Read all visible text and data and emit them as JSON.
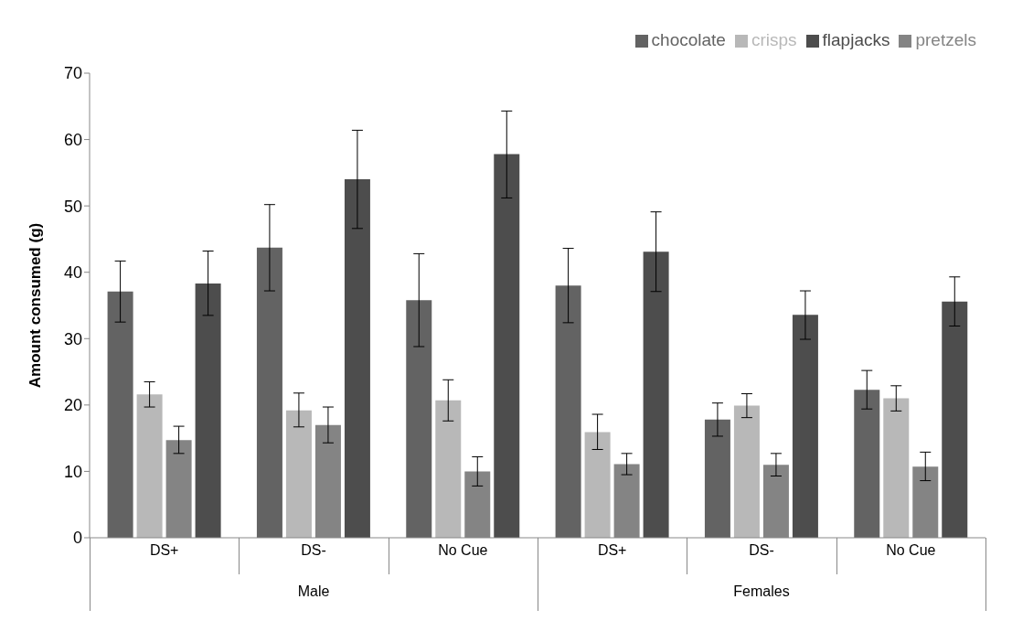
{
  "chart_data": {
    "type": "bar",
    "ylabel": "Amount consumed (g)",
    "categories": [
      "DS+",
      "DS-",
      "No Cue",
      "DS+",
      "DS-",
      "No Cue"
    ],
    "annotations": [
      "Male",
      "Females"
    ],
    "series": [
      {
        "name": "chocolate",
        "color": "#636363",
        "values": [
          37.1,
          43.7,
          35.8,
          38.0,
          17.8,
          22.3
        ],
        "errors": [
          [
            32.5,
            41.7
          ],
          [
            37.2,
            50.2
          ],
          [
            28.8,
            42.8
          ],
          [
            32.4,
            43.6
          ],
          [
            15.3,
            20.3
          ],
          [
            19.4,
            25.2
          ]
        ]
      },
      {
        "name": "crisps",
        "color": "#b8b8b8",
        "values": [
          21.6,
          19.2,
          20.7,
          15.9,
          19.9,
          21.0
        ],
        "errors": [
          [
            19.7,
            23.5
          ],
          [
            16.7,
            21.8
          ],
          [
            17.6,
            23.8
          ],
          [
            13.3,
            18.6
          ],
          [
            18.1,
            21.7
          ],
          [
            19.1,
            22.9
          ]
        ]
      },
      {
        "name": "pretzels",
        "color": "#848484",
        "values": [
          14.7,
          17.0,
          10.0,
          11.1,
          11.0,
          10.7
        ],
        "errors": [
          [
            12.7,
            16.8
          ],
          [
            14.3,
            19.7
          ],
          [
            7.8,
            12.2
          ],
          [
            9.5,
            12.7
          ],
          [
            9.3,
            12.7
          ],
          [
            8.6,
            12.9
          ]
        ]
      },
      {
        "name": "flapjacks",
        "color": "#4d4d4d",
        "values": [
          38.3,
          54.0,
          57.8,
          43.1,
          33.6,
          35.6
        ],
        "errors": [
          [
            33.5,
            43.2
          ],
          [
            46.6,
            61.4
          ],
          [
            51.2,
            64.3
          ],
          [
            37.1,
            49.1
          ],
          [
            29.9,
            37.2
          ],
          [
            31.9,
            39.3
          ]
        ]
      }
    ],
    "ylim": [
      0,
      70
    ],
    "yticks": [
      0,
      10,
      20,
      30,
      40,
      50,
      60,
      70
    ],
    "grid": false,
    "legend": "top right"
  }
}
